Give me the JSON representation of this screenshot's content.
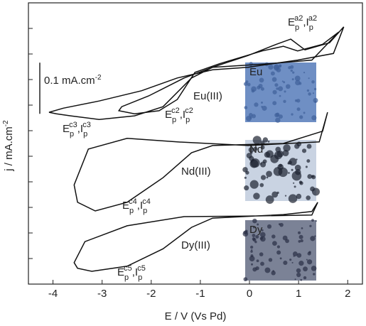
{
  "chart_data": {
    "type": "line",
    "x_label": "E / V (Vs Pd)",
    "y_label": [
      "j / mA.cm",
      "-2"
    ],
    "xlim": [
      -4.5,
      2.3
    ],
    "xticks": [
      -4,
      -3,
      -2,
      -1,
      0,
      1,
      2
    ],
    "ylim": [
      -0.05,
      0.5
    ],
    "yticks": [
      0,
      0.05,
      0.1,
      0.15,
      0.2,
      0.25,
      0.3,
      0.35,
      0.4,
      0.45,
      0.5
    ],
    "scale_bar": {
      "value": 0.1,
      "label": [
        "0.1 mA.cm",
        "-2"
      ]
    },
    "series": [
      {
        "color": "#111111",
        "x": [
          1.92,
          1.71,
          0.98,
          -0.03,
          -0.75,
          -1.47,
          -2.2,
          -3.06,
          -3.79,
          -4.08,
          -3.93,
          -3.64,
          -3.06,
          -2.34,
          -1.76,
          -1.18,
          -0.75,
          -0.03,
          0.55,
          0.84,
          1.13,
          1.63,
          1.92
        ],
        "values": [
          0.453,
          0.401,
          0.388,
          0.374,
          0.369,
          0.353,
          0.328,
          0.308,
          0.294,
          0.286,
          0.283,
          0.279,
          0.272,
          0.279,
          0.297,
          0.353,
          0.374,
          0.397,
          0.419,
          0.429,
          0.408,
          0.422,
          0.453
        ]
      },
      {
        "color": "#111111",
        "x": [
          1.82,
          1.27,
          0.4,
          -0.75,
          -1.33,
          -2.05,
          -2.6,
          -2.66,
          -2.34,
          -1.84,
          -1.47,
          -1.11,
          -0.61,
          0.26,
          0.69,
          0.98,
          1.49,
          1.82
        ],
        "values": [
          0.443,
          0.388,
          0.381,
          0.374,
          0.353,
          0.318,
          0.297,
          0.289,
          0.283,
          0.289,
          0.311,
          0.364,
          0.381,
          0.406,
          0.415,
          0.406,
          0.419,
          0.443
        ]
      },
      {
        "color": "#111111",
        "x": [
          1.59,
          1.42,
          -0.03,
          -1.47,
          -2.49,
          -3.28,
          -3.57,
          -3.5,
          -3.14,
          -2.49,
          -1.76,
          -1.18,
          -0.75,
          0.69,
          1.49,
          1.59
        ],
        "values": [
          0.286,
          0.228,
          0.221,
          0.228,
          0.235,
          0.214,
          0.144,
          0.11,
          0.093,
          0.11,
          0.158,
          0.207,
          0.221,
          0.225,
          0.249,
          0.286
        ]
      },
      {
        "color": "#111111",
        "x": [
          1.39,
          1.27,
          -0.03,
          -1.33,
          -2.49,
          -3.35,
          -3.57,
          -3.5,
          -3.21,
          -2.49,
          -1.76,
          -1.18,
          -0.75,
          0.69,
          1.27,
          1.39
        ],
        "values": [
          0.11,
          0.085,
          0.083,
          0.082,
          0.064,
          0.033,
          -0.008,
          -0.019,
          -0.025,
          -0.015,
          0.019,
          0.061,
          0.079,
          0.086,
          0.092,
          0.11
        ]
      }
    ],
    "curve_labels": [
      "Eu(III)",
      "Nd(III)",
      "Dy(III)"
    ],
    "peak_labels": [
      [
        "E",
        "p",
        "a2",
        ",I",
        "p",
        "a2"
      ],
      [
        "E",
        "p",
        "c2",
        ",I",
        "p",
        "c2"
      ],
      [
        "E",
        "p",
        "c3",
        ",I",
        "p",
        "c3"
      ],
      [
        "E",
        "p",
        "c4",
        ",I",
        "p",
        "c4"
      ],
      [
        "E",
        "p",
        "c5",
        ",I",
        "p",
        "c5"
      ]
    ],
    "insets": [
      "Eu",
      "Nd",
      "Dy"
    ]
  }
}
